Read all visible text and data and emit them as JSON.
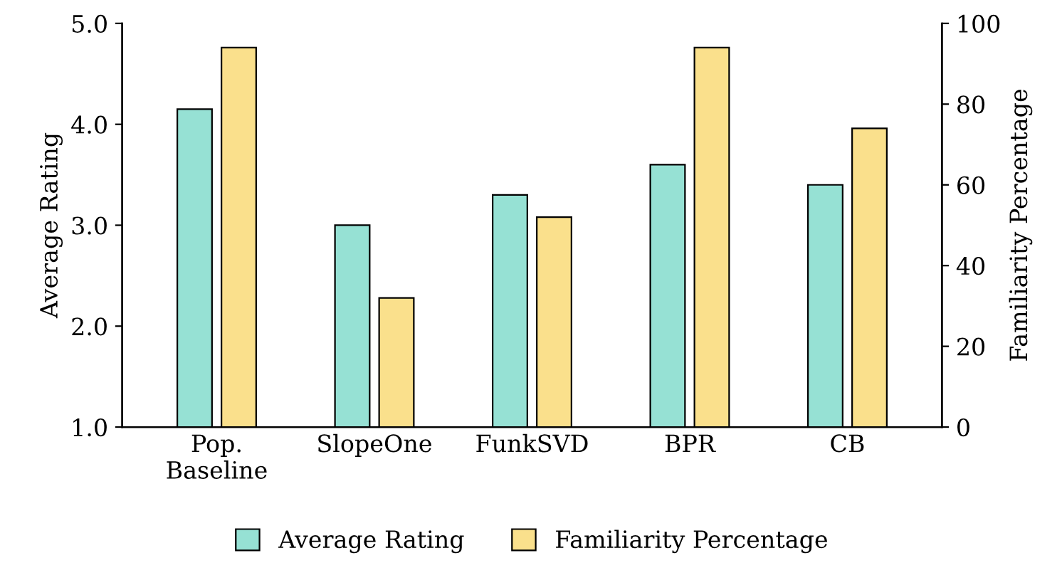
{
  "chart_data": {
    "type": "bar",
    "ylabel": "Average Rating",
    "y2label": "Familiarity Percentage",
    "categories": [
      "Pop.\nBaseline",
      "SlopeOne",
      "FunkSVD",
      "BPR",
      "CB"
    ],
    "series": [
      {
        "name": "Average Rating",
        "color": "#96e1d4",
        "values": [
          4.15,
          3.0,
          3.3,
          3.6,
          3.4
        ]
      },
      {
        "name": "Familiarity Percentage",
        "color": "#fae08c",
        "axis": "y2",
        "values": [
          94,
          32,
          52,
          94,
          74
        ]
      }
    ],
    "ylim": [
      1.0,
      5.0
    ],
    "yticks": [
      {
        "value": 1.0,
        "label": "1.0"
      },
      {
        "value": 2.0,
        "label": "2.0"
      },
      {
        "value": 3.0,
        "label": "3.0"
      },
      {
        "value": 4.0,
        "label": "4.0"
      },
      {
        "value": 5.0,
        "label": "5.0"
      }
    ],
    "y2lim": [
      0,
      100
    ],
    "y2ticks": [
      0,
      20,
      40,
      60,
      80,
      100
    ],
    "grid": false,
    "legend": "bottom"
  }
}
